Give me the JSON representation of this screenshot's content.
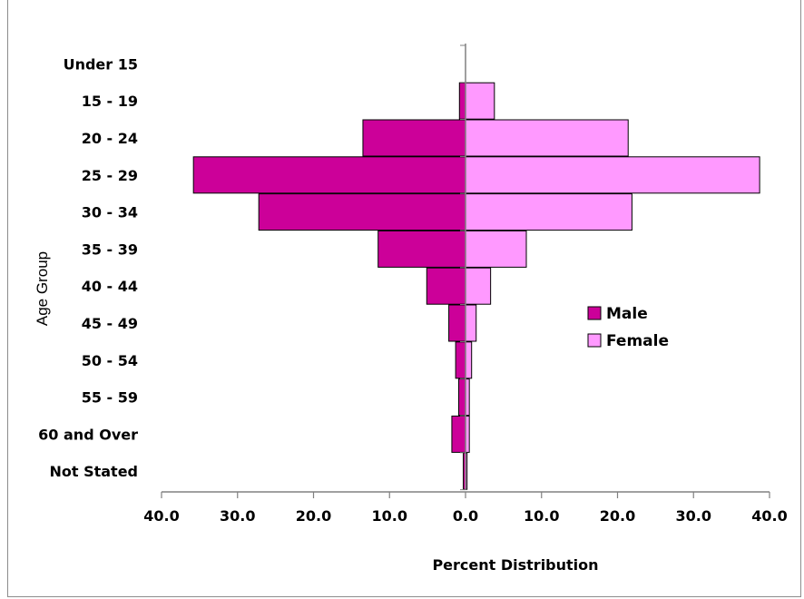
{
  "chart_data": {
    "type": "bar",
    "orientation": "horizontal-pyramid",
    "title": "",
    "xlabel": "Percent Distribution",
    "ylabel": "Age Group",
    "xlim": [
      -40,
      40
    ],
    "x_tick_labels": [
      "40.0",
      "30.0",
      "20.0",
      "10.0",
      "0.0",
      "10.0",
      "20.0",
      "30.0",
      "40.0"
    ],
    "categories": [
      "Under 15",
      "15 - 19",
      "20 - 24",
      "25 - 29",
      "30 - 34",
      "35 - 39",
      "40 - 44",
      "45 - 49",
      "50 - 54",
      "55 - 59",
      "60 and Over",
      "Not Stated"
    ],
    "series": [
      {
        "name": "Male",
        "color": "#cc0099",
        "values": [
          0.0,
          0.8,
          13.5,
          35.8,
          27.2,
          11.5,
          5.1,
          2.2,
          1.3,
          0.9,
          1.8,
          0.3
        ]
      },
      {
        "name": "Female",
        "color": "#ff99ff",
        "values": [
          0.0,
          3.8,
          21.4,
          38.7,
          21.9,
          8.0,
          3.3,
          1.4,
          0.8,
          0.5,
          0.5,
          0.2
        ]
      }
    ],
    "legend_position": "right",
    "grid": false
  }
}
